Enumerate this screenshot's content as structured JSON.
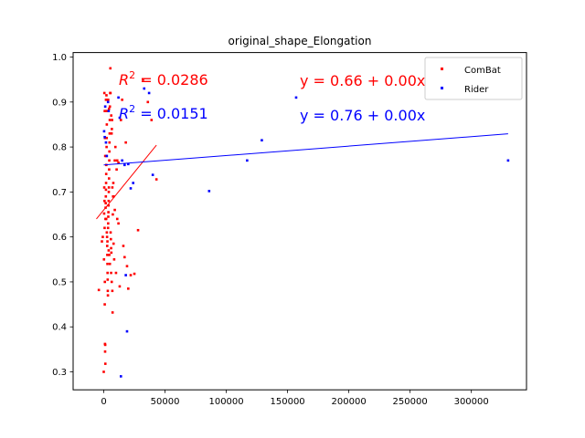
{
  "chart_data": {
    "type": "scatter",
    "title": "original_shape_Elongation",
    "xlabel": "",
    "ylabel": "",
    "xlim": [
      -25000,
      345000
    ],
    "ylim": [
      0.26,
      1.01
    ],
    "x_ticks": [
      0,
      50000,
      100000,
      150000,
      200000,
      250000,
      300000
    ],
    "x_tick_labels": [
      "0",
      "50000",
      "100000",
      "150000",
      "200000",
      "250000",
      "300000"
    ],
    "y_ticks": [
      0.3,
      0.4,
      0.5,
      0.6,
      0.7,
      0.8,
      0.9,
      1.0
    ],
    "y_tick_labels": [
      "0.3",
      "0.4",
      "0.5",
      "0.6",
      "0.7",
      "0.8",
      "0.9",
      "1.0"
    ],
    "grid": false,
    "legend_position": "top-right",
    "series": [
      {
        "name": "ComBat",
        "color": "#ff0000",
        "points": [
          [
            -4000,
            0.482
          ],
          [
            -1500,
            0.59
          ],
          [
            -800,
            0.6
          ],
          [
            0,
            0.3
          ],
          [
            200,
            0.55
          ],
          [
            300,
            0.652
          ],
          [
            400,
            0.71
          ],
          [
            500,
            0.92
          ],
          [
            600,
            0.68
          ],
          [
            700,
            0.62
          ],
          [
            800,
            0.45
          ],
          [
            900,
            0.5
          ],
          [
            1000,
            0.362
          ],
          [
            1100,
            0.345
          ],
          [
            1200,
            0.36
          ],
          [
            1300,
            0.318
          ],
          [
            1400,
            0.64
          ],
          [
            1500,
            0.665
          ],
          [
            1600,
            0.675
          ],
          [
            1700,
            0.69
          ],
          [
            1800,
            0.705
          ],
          [
            1900,
            0.72
          ],
          [
            2000,
            0.74
          ],
          [
            2100,
            0.76
          ],
          [
            2200,
            0.78
          ],
          [
            2300,
            0.8
          ],
          [
            2400,
            0.82
          ],
          [
            2500,
            0.85
          ],
          [
            2600,
            0.88
          ],
          [
            2700,
            0.6
          ],
          [
            2800,
            0.58
          ],
          [
            2900,
            0.56
          ],
          [
            3000,
            0.54
          ],
          [
            3100,
            0.52
          ],
          [
            3200,
            0.505
          ],
          [
            3300,
            0.48
          ],
          [
            3400,
            0.47
          ],
          [
            3500,
            0.62
          ],
          [
            3600,
            0.63
          ],
          [
            3700,
            0.645
          ],
          [
            3800,
            0.655
          ],
          [
            3900,
            0.67
          ],
          [
            4000,
            0.68
          ],
          [
            4100,
            0.7
          ],
          [
            4200,
            0.71
          ],
          [
            4300,
            0.73
          ],
          [
            4400,
            0.75
          ],
          [
            4500,
            0.77
          ],
          [
            4600,
            0.79
          ],
          [
            4700,
            0.81
          ],
          [
            4800,
            0.83
          ],
          [
            4900,
            0.86
          ],
          [
            5000,
            0.89
          ],
          [
            5200,
            0.92
          ],
          [
            5400,
            0.975
          ],
          [
            5600,
            0.61
          ],
          [
            5800,
            0.595
          ],
          [
            6000,
            0.575
          ],
          [
            6200,
            0.565
          ],
          [
            6400,
            0.83
          ],
          [
            6600,
            0.84
          ],
          [
            6800,
            0.86
          ],
          [
            7000,
            0.48
          ],
          [
            7200,
            0.432
          ],
          [
            7400,
            0.65
          ],
          [
            7600,
            0.69
          ],
          [
            7800,
            0.72
          ],
          [
            8000,
            0.585
          ],
          [
            8500,
            0.55
          ],
          [
            9000,
            0.77
          ],
          [
            9500,
            0.8
          ],
          [
            10000,
            0.52
          ],
          [
            10500,
            0.75
          ],
          [
            11000,
            0.77
          ],
          [
            12000,
            0.765
          ],
          [
            13000,
            0.49
          ],
          [
            14000,
            0.86
          ],
          [
            15000,
            0.905
          ],
          [
            16000,
            0.58
          ],
          [
            17000,
            0.555
          ],
          [
            18000,
            0.81
          ],
          [
            19000,
            0.535
          ],
          [
            20000,
            0.485
          ],
          [
            22000,
            0.515
          ],
          [
            25000,
            0.518
          ],
          [
            28000,
            0.615
          ],
          [
            32000,
            0.95
          ],
          [
            36000,
            0.9
          ],
          [
            39000,
            0.86
          ],
          [
            43000,
            0.728
          ],
          [
            5500,
            0.92
          ],
          [
            6100,
            0.87
          ],
          [
            4300,
            0.885
          ],
          [
            3600,
            0.905
          ],
          [
            2200,
            0.915
          ],
          [
            1800,
            0.905
          ],
          [
            800,
            0.88
          ],
          [
            1000,
            0.82
          ],
          [
            1200,
            0.78
          ],
          [
            2000,
            0.64
          ],
          [
            2500,
            0.61
          ],
          [
            3000,
            0.59
          ],
          [
            4000,
            0.57
          ],
          [
            4500,
            0.56
          ],
          [
            5000,
            0.54
          ],
          [
            6000,
            0.52
          ],
          [
            6500,
            0.5
          ],
          [
            7000,
            0.71
          ],
          [
            8000,
            0.69
          ],
          [
            9000,
            0.66
          ],
          [
            11000,
            0.64
          ],
          [
            12000,
            0.63
          ]
        ]
      },
      {
        "name": "Rider",
        "color": "#0000ff",
        "points": [
          [
            300,
            0.835
          ],
          [
            800,
            0.822
          ],
          [
            1200,
            0.89
          ],
          [
            1800,
            0.81
          ],
          [
            2500,
            0.78
          ],
          [
            3500,
            0.9
          ],
          [
            4000,
            0.88
          ],
          [
            12000,
            0.91
          ],
          [
            13000,
            0.865
          ],
          [
            14000,
            0.29
          ],
          [
            15000,
            0.77
          ],
          [
            17000,
            0.76
          ],
          [
            18000,
            0.515
          ],
          [
            19000,
            0.39
          ],
          [
            20000,
            0.762
          ],
          [
            22000,
            0.708
          ],
          [
            24000,
            0.72
          ],
          [
            33000,
            0.93
          ],
          [
            37000,
            0.92
          ],
          [
            40000,
            0.738
          ],
          [
            86000,
            0.702
          ],
          [
            117000,
            0.77
          ],
          [
            129000,
            0.815
          ],
          [
            157000,
            0.91
          ],
          [
            330000,
            0.77
          ]
        ]
      }
    ],
    "fit_lines": [
      {
        "series": "ComBat",
        "color": "#ff0000",
        "x_range": [
          -6000,
          43000
        ],
        "intercept": 0.66,
        "slope": 3.35e-06
      },
      {
        "series": "Rider",
        "color": "#0000ff",
        "x_range": [
          0,
          330000
        ],
        "intercept": 0.76,
        "slope": 2.1e-07
      }
    ],
    "annotations": [
      {
        "series": "ComBat",
        "color": "#ff0000",
        "r2_label": "R",
        "r2_sup": "2",
        "r2_value": " = 0.0286",
        "equation": "y = 0.66 + 0.00x"
      },
      {
        "series": "Rider",
        "color": "#0000ff",
        "r2_label": "R",
        "r2_sup": "2",
        "r2_value": " = 0.0151",
        "equation": "y = 0.76 + 0.00x"
      }
    ]
  }
}
